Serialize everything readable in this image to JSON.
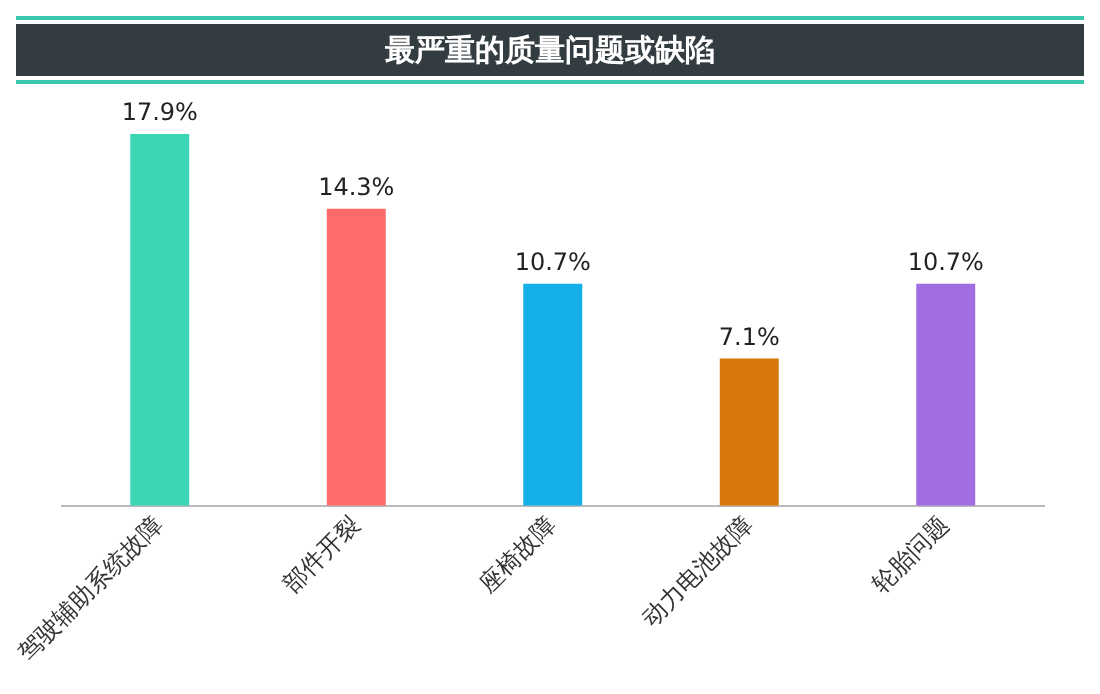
{
  "chart_data": {
    "type": "bar",
    "title": "最严重的质量问题或缺陷",
    "categories": [
      "驾驶辅助系统故障",
      "部件开裂",
      "座椅故障",
      "动力电池故障",
      "轮胎问题"
    ],
    "values": [
      17.9,
      14.3,
      10.7,
      7.1,
      10.7
    ],
    "colors": [
      "#3dd6b5",
      "#ff6b6b",
      "#14aee8",
      "#d9780a",
      "#a06ee0"
    ],
    "value_labels": [
      "17.9%",
      "14.3%",
      "10.7%",
      "7.1%",
      "10.7%"
    ],
    "grid": false,
    "legend": false
  }
}
